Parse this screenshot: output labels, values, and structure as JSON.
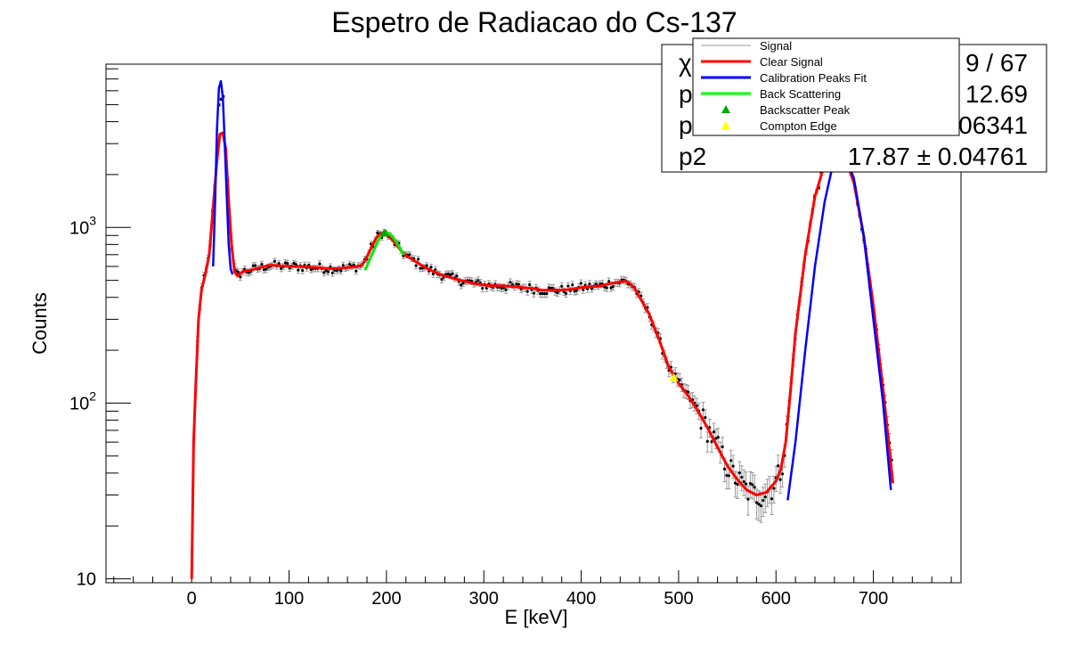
{
  "chart_data": {
    "type": "scatter",
    "title": "Espetro de Radiacao do Cs-137",
    "xlabel": "E [keV]",
    "ylabel": "Counts",
    "xlim": [
      -88,
      790
    ],
    "ylim": [
      9.5,
      8500
    ],
    "yscale": "log",
    "grid": false,
    "legend_position": "top-right",
    "x_ticks": [
      0,
      100,
      200,
      300,
      400,
      500,
      600,
      700
    ],
    "x_tick_labels": [
      "0",
      "100",
      "200",
      "300",
      "400",
      "500",
      "600",
      "700"
    ],
    "y_major_ticks": [
      10,
      100,
      1000
    ],
    "y_tick_labels": [
      {
        "base": "10",
        "exp": ""
      },
      {
        "base": "10",
        "exp": "2"
      },
      {
        "base": "10",
        "exp": "3"
      }
    ],
    "legend": [
      {
        "label": "Signal",
        "style": "thin-line",
        "color": "#999999"
      },
      {
        "label": "Clear Signal",
        "style": "line",
        "color": "#ff0000"
      },
      {
        "label": "Calibration Peaks Fit",
        "style": "line",
        "color": "#0000ff"
      },
      {
        "label": "Back Scattering",
        "style": "line",
        "color": "#00ff00"
      },
      {
        "label": "Backscatter Peak",
        "style": "triangle",
        "color": "#00aa00"
      },
      {
        "label": "Compton Edge",
        "style": "triangle",
        "color": "#ffff00"
      }
    ],
    "stats_box": [
      {
        "left": "χ",
        "right": "9 / 67"
      },
      {
        "left": "p",
        "right": "12.69"
      },
      {
        "left": "p",
        "right": "06341"
      },
      {
        "left": "p2",
        "right": "17.87 ± 0.04761"
      }
    ],
    "clear_signal": {
      "x": [
        0,
        2,
        4,
        7,
        10,
        14,
        18,
        22,
        26,
        29,
        32,
        35,
        38,
        41,
        44,
        47,
        52,
        60,
        70,
        80,
        90,
        100,
        110,
        120,
        130,
        140,
        150,
        160,
        170,
        175,
        180,
        185,
        190,
        195,
        200,
        205,
        210,
        215,
        220,
        230,
        240,
        250,
        260,
        270,
        280,
        290,
        300,
        310,
        320,
        330,
        340,
        350,
        360,
        370,
        380,
        390,
        400,
        410,
        420,
        430,
        440,
        445,
        450,
        455,
        460,
        470,
        480,
        490,
        500,
        510,
        520,
        530,
        540,
        550,
        560,
        570,
        580,
        590,
        600,
        605,
        610,
        615,
        620,
        630,
        640,
        650,
        660,
        665,
        670,
        680,
        690,
        700,
        710,
        720
      ],
      "y": [
        10,
        60,
        120,
        300,
        440,
        540,
        700,
        1300,
        2400,
        3400,
        3450,
        2800,
        1400,
        800,
        560,
        530,
        560,
        570,
        590,
        610,
        605,
        600,
        600,
        595,
        590,
        585,
        585,
        590,
        600,
        610,
        680,
        780,
        880,
        930,
        920,
        860,
        800,
        740,
        690,
        640,
        590,
        555,
        530,
        510,
        495,
        480,
        470,
        465,
        465,
        460,
        455,
        450,
        440,
        440,
        440,
        445,
        455,
        460,
        465,
        480,
        490,
        495,
        480,
        450,
        400,
        320,
        230,
        160,
        130,
        110,
        90,
        72,
        56,
        44,
        37,
        32,
        30,
        31,
        36,
        42,
        60,
        120,
        250,
        700,
        1500,
        2300,
        2900,
        2850,
        2600,
        1800,
        900,
        360,
        120,
        35
      ]
    },
    "calibration_peak_1": {
      "x": [
        22,
        24,
        26,
        28,
        30,
        32,
        34,
        36,
        38,
        40,
        42
      ],
      "y": [
        600,
        1400,
        3600,
        6200,
        6800,
        5500,
        3000,
        1500,
        800,
        580,
        540
      ]
    },
    "calibration_peak_2": {
      "x": [
        612,
        620,
        630,
        640,
        650,
        660,
        665,
        670,
        680,
        690,
        700,
        710,
        718
      ],
      "y": [
        28,
        60,
        200,
        600,
        1400,
        2500,
        2850,
        2700,
        1900,
        900,
        300,
        100,
        32
      ]
    },
    "back_scattering": {
      "x": [
        178,
        182,
        186,
        190,
        194,
        198,
        202,
        206,
        210,
        214,
        218
      ],
      "y": [
        570,
        640,
        720,
        810,
        890,
        930,
        930,
        890,
        830,
        760,
        700
      ]
    },
    "backscatter_peak": {
      "x": 198,
      "y": 930
    },
    "compton_edge": {
      "x": 495,
      "y": 140
    }
  }
}
